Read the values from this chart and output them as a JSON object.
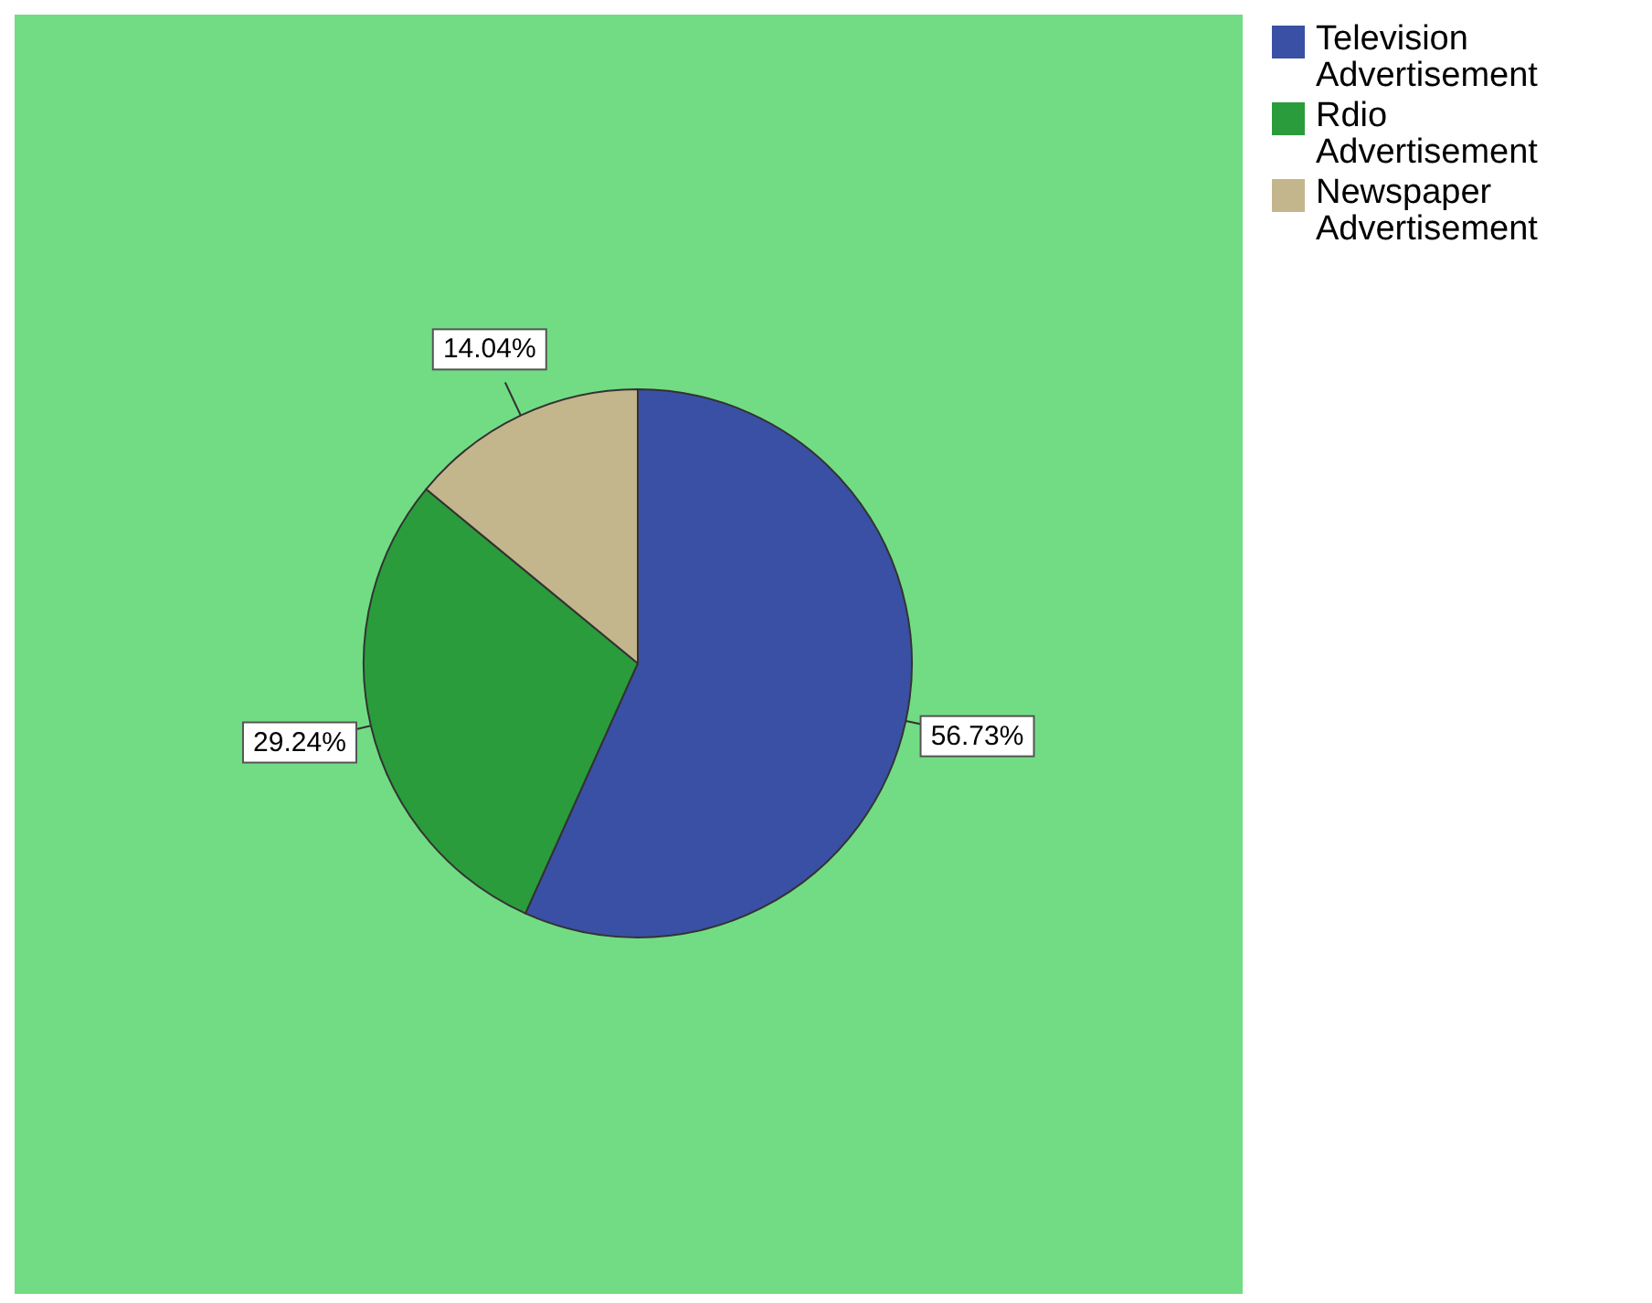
{
  "chart_data": {
    "type": "pie",
    "categories": [
      "Television Advertisement",
      "Rdio Advertisement",
      "Newspaper Advertisement"
    ],
    "values": [
      56.73,
      29.24,
      14.04
    ],
    "colors": [
      "#3a50a4",
      "#2a9c3c",
      "#c4b68c"
    ],
    "value_labels": [
      "56.73%",
      "29.24%",
      "14.04%"
    ],
    "legend": "top right"
  }
}
